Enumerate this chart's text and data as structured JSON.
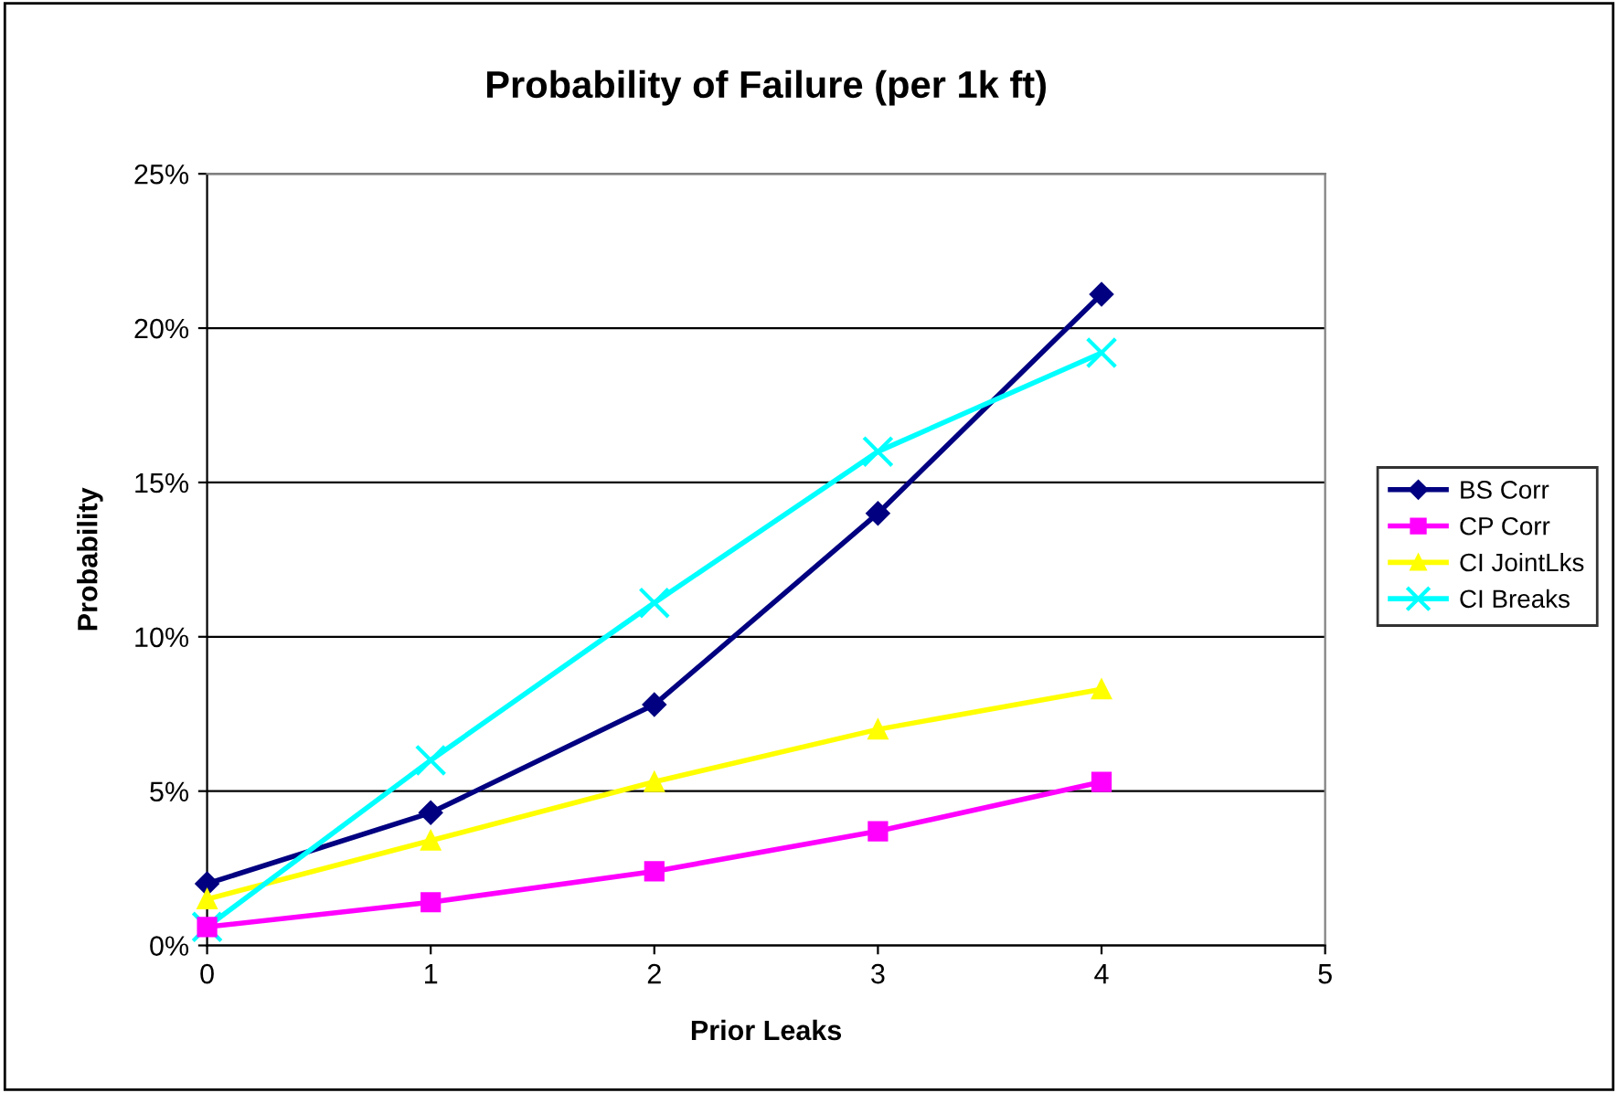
{
  "chart_data": {
    "type": "line",
    "title": "Probability of Failure (per 1k ft)",
    "xlabel": "Prior Leaks",
    "ylabel": "Probability",
    "x": [
      0,
      1,
      2,
      3,
      4
    ],
    "series": [
      {
        "name": "BS Corr",
        "color": "#000080",
        "marker": "diamond",
        "values": [
          2.0,
          4.3,
          7.8,
          14.0,
          21.1
        ]
      },
      {
        "name": "CP Corr",
        "color": "#ff00ff",
        "marker": "square",
        "values": [
          0.6,
          1.4,
          2.4,
          3.7,
          5.3
        ]
      },
      {
        "name": "CI JointLks",
        "color": "#ffff00",
        "marker": "triangle",
        "values": [
          1.5,
          3.4,
          5.3,
          7.0,
          8.3
        ]
      },
      {
        "name": "CI Breaks",
        "color": "#00ffff",
        "marker": "cross",
        "values": [
          0.6,
          6.0,
          11.1,
          16.0,
          19.2
        ]
      }
    ],
    "xlim": [
      0,
      5
    ],
    "xticks": [
      0,
      1,
      2,
      3,
      4,
      5
    ],
    "ylim": [
      0,
      25
    ],
    "yticks": [
      {
        "value": 0,
        "label": "0%"
      },
      {
        "value": 5,
        "label": "5%"
      },
      {
        "value": 10,
        "label": "10%"
      },
      {
        "value": 15,
        "label": "15%"
      },
      {
        "value": 20,
        "label": "20%"
      },
      {
        "value": 25,
        "label": "25%"
      }
    ],
    "grid": "y",
    "legend": "right",
    "line_style": "solid"
  }
}
